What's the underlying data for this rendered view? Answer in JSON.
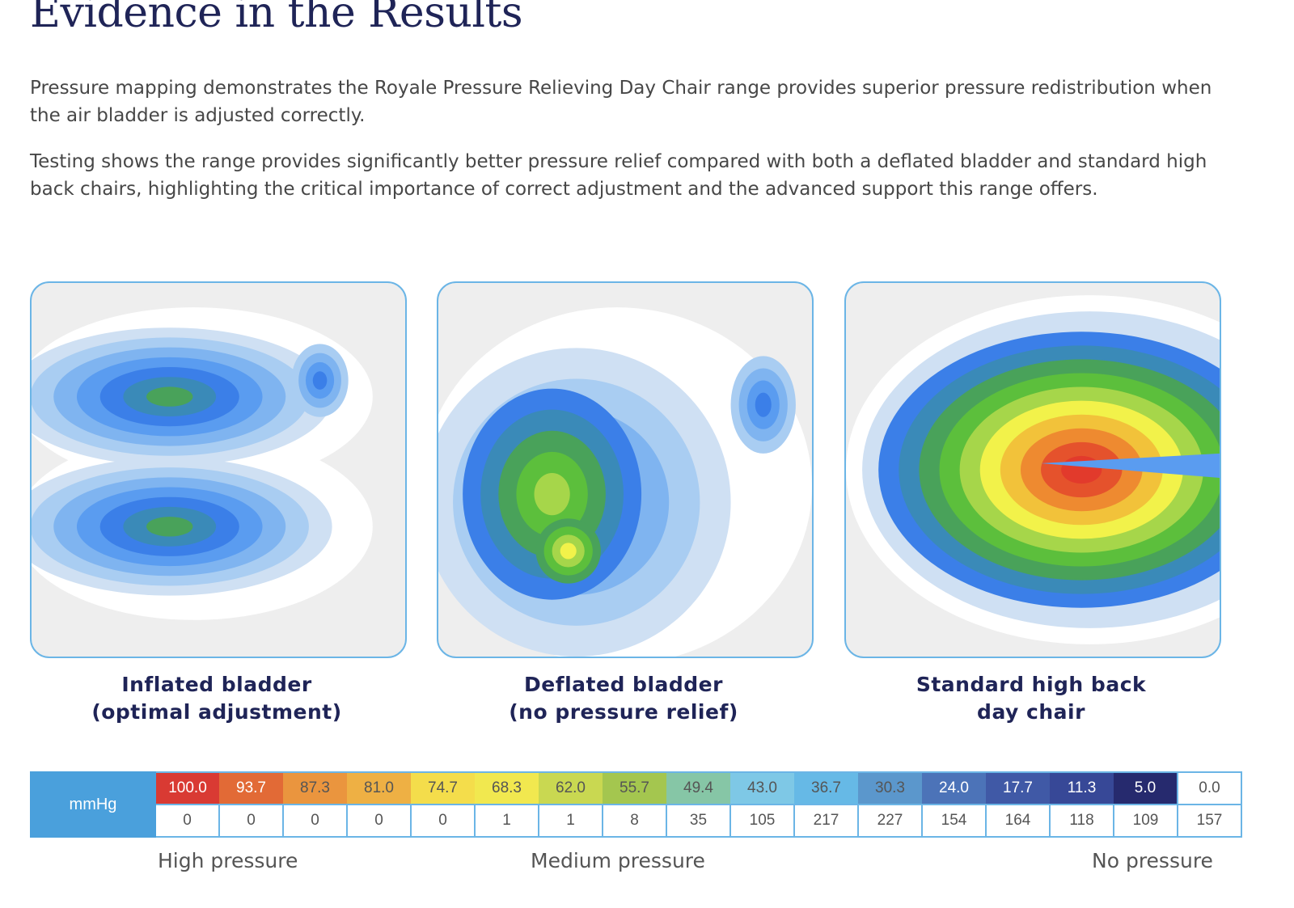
{
  "title": "Evidence in the Results",
  "paragraphs": [
    "Pressure mapping demonstrates the Royale Pressure Relieving Day Chair range provides superior pressure redistribution when the air bladder is adjusted correctly.",
    "Testing shows the range provides significantly better pressure relief compared with both a deflated bladder and standard high back chairs, highlighting the critical importance of correct adjustment and the advanced support this range offers."
  ],
  "panels": [
    {
      "caption_1": "Inflated bladder",
      "caption_2": "(optimal adjustment)"
    },
    {
      "caption_1": "Deflated bladder",
      "caption_2": "(no pressure relief)"
    },
    {
      "caption_1": "Standard high back",
      "caption_2": "day chair"
    }
  ],
  "chart_data": {
    "type": "heatmap",
    "unit": "mmHg",
    "scale": [
      100.0,
      93.7,
      87.3,
      81.0,
      74.7,
      68.3,
      62.0,
      55.7,
      49.4,
      43.0,
      36.7,
      30.3,
      24.0,
      17.7,
      11.3,
      5.0,
      0.0
    ],
    "counts": [
      0,
      0,
      0,
      0,
      0,
      1,
      1,
      8,
      35,
      105,
      217,
      227,
      154,
      164,
      118,
      109,
      157
    ],
    "colors": [
      "#d93a33",
      "#e26a36",
      "#ea953e",
      "#eeb044",
      "#f4dd4b",
      "#f1e84f",
      "#c9d851",
      "#a4c64f",
      "#86c6a6",
      "#7ec8e6",
      "#66b9e6",
      "#5b97cc",
      "#4c73b8",
      "#4059a6",
      "#374897",
      "#262a6e",
      "#ffffff"
    ],
    "text_colors": [
      "#ffffff",
      "#ffffff",
      "#555555",
      "#555555",
      "#555555",
      "#555555",
      "#555555",
      "#555555",
      "#555555",
      "#555555",
      "#555555",
      "#555555",
      "#ffffff",
      "#ffffff",
      "#ffffff",
      "#ffffff",
      "#555555"
    ],
    "labels": {
      "high": "High pressure",
      "medium": "Medium pressure",
      "none": "No pressure"
    }
  }
}
